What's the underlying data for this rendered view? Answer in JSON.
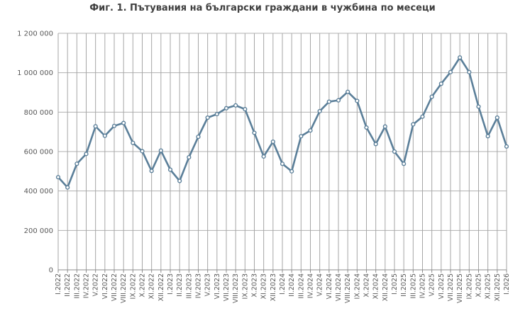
{
  "chart_data": {
    "type": "line",
    "title": "Фиг. 1. Пътувания на български граждани в чужбина по месеци",
    "xlabel": "",
    "ylabel": "",
    "ylim": [
      0,
      1200000
    ],
    "yticks": [
      0,
      200000,
      400000,
      600000,
      800000,
      1000000,
      1200000
    ],
    "ytick_labels": [
      "0",
      "200 000",
      "400 000",
      "600 000",
      "800 000",
      "1 000 000",
      "1 200 000"
    ],
    "grid": true,
    "legend": "none",
    "line_color": "#5b7f99",
    "categories": [
      "I.2022",
      "II.2022",
      "III.2022",
      "IV.2022",
      "V.2022",
      "VI.2022",
      "VII.2022",
      "VIII.2022",
      "IX.2022",
      "X.2022",
      "XI.2022",
      "XII.2022",
      "I.2023",
      "II.2023",
      "III.2023",
      "IV.2023",
      "V.2023",
      "VI.2023",
      "VII.2023",
      "VIII.2023",
      "IX.2023",
      "X.2023",
      "XI.2023",
      "XII.2023",
      "I.2024",
      "II.2024",
      "III.2024",
      "IV.2024",
      "V.2024",
      "VI.2024",
      "VII.2024",
      "VIII.2024",
      "IX.2024",
      "X.2024",
      "XI.2024",
      "XII.2024",
      "I.2025",
      "II.2025",
      "III.2025",
      "IV.2025",
      "V.2025",
      "VI.2025",
      "VII.2025",
      "VIII.2025",
      "IX.2025",
      "X.2025",
      "XI.2025",
      "XII.2025",
      "I.2026"
    ],
    "x_tick_labels": [
      "I.2022",
      "II.2022",
      "III.2022",
      "IV.2022",
      "V.2022",
      "VI.2022",
      "VII.2022",
      "VIII.2022",
      "IX.2022",
      "X.2022",
      "XI.2022",
      "XII.2022",
      "I.2023",
      "II.2023",
      "III.2023",
      "IV.2023",
      "V.2023",
      "VI.2023",
      "VII.2023",
      "VIII.2023",
      "IX.2023",
      "X.2023",
      "XI.2023",
      "XII.2023",
      "I.2024",
      "II.2024",
      "III.2024",
      "IV.2024",
      "V.2024",
      "VI.2024",
      "VII.2024",
      "VIII.2024",
      "IX.2024",
      "X.2024",
      "XI.2024",
      "XII.2024",
      "I.2025",
      "II.2025",
      "III.2025",
      "IV.2025",
      "V.2025",
      "VI.2025",
      "VII.2025",
      "VIII.2025",
      "IX.2025",
      "X.2025",
      "XI.2025",
      "XII.2025",
      "I.2026"
    ],
    "series": [
      {
        "values": [
          470000,
          418000,
          538000,
          588000,
          728000,
          680000,
          730000,
          745000,
          644000,
          602000,
          502000,
          605000,
          508000,
          451000,
          571000,
          675000,
          772000,
          790000,
          820000,
          834000,
          815000,
          695000,
          575000,
          650000,
          538000,
          500000,
          678000,
          707000,
          805000,
          853000,
          860000,
          903000,
          857000,
          722000,
          638000,
          727000,
          600000,
          538000,
          738000,
          777000,
          878000,
          944000,
          1003000,
          1077000,
          1003000,
          828000,
          678000,
          772000,
          626000
        ]
      }
    ]
  }
}
